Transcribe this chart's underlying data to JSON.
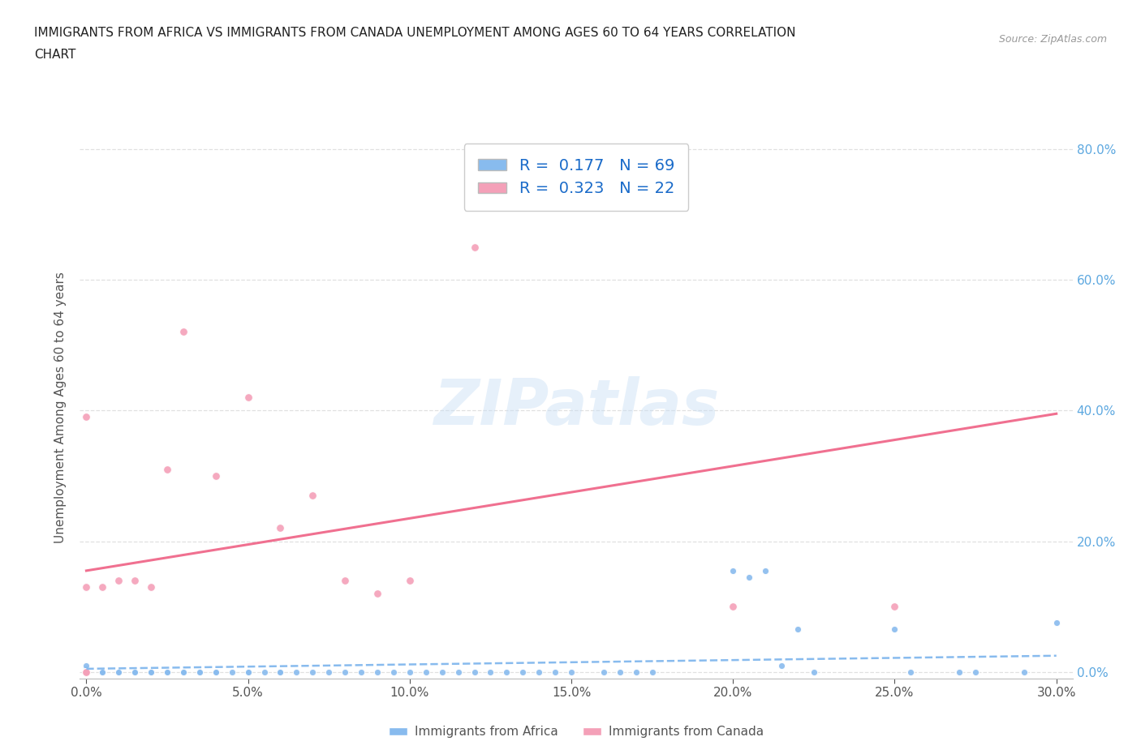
{
  "title": "IMMIGRANTS FROM AFRICA VS IMMIGRANTS FROM CANADA UNEMPLOYMENT AMONG AGES 60 TO 64 YEARS CORRELATION\nCHART",
  "source_text": "Source: ZipAtlas.com",
  "ylabel": "Unemployment Among Ages 60 to 64 years",
  "xlabel_ticks": [
    "0.0%",
    "5.0%",
    "10.0%",
    "15.0%",
    "20.0%",
    "25.0%",
    "30.0%"
  ],
  "ylabel_ticks": [
    "0.0%",
    "20.0%",
    "40.0%",
    "60.0%",
    "80.0%"
  ],
  "xlim": [
    -0.002,
    0.305
  ],
  "ylim": [
    -0.01,
    0.82
  ],
  "africa_color": "#88bbee",
  "canada_color": "#f4a0b8",
  "africa_line_color": "#88bbee",
  "canada_line_color": "#f07090",
  "africa_R": 0.177,
  "africa_N": 69,
  "canada_R": 0.323,
  "canada_N": 22,
  "legend_label_africa": "Immigrants from Africa",
  "legend_label_canada": "Immigrants from Canada",
  "watermark": "ZIPatlas",
  "background_color": "#ffffff",
  "grid_color": "#dddddd",
  "africa_scatter_x": [
    0.0,
    0.0,
    0.0,
    0.0,
    0.0,
    0.0,
    0.0,
    0.0,
    0.0,
    0.0,
    0.005,
    0.005,
    0.005,
    0.01,
    0.01,
    0.015,
    0.015,
    0.02,
    0.02,
    0.02,
    0.025,
    0.025,
    0.03,
    0.03,
    0.03,
    0.035,
    0.035,
    0.04,
    0.04,
    0.045,
    0.05,
    0.05,
    0.055,
    0.06,
    0.06,
    0.065,
    0.07,
    0.075,
    0.08,
    0.085,
    0.09,
    0.095,
    0.1,
    0.105,
    0.11,
    0.115,
    0.12,
    0.125,
    0.13,
    0.135,
    0.14,
    0.145,
    0.15,
    0.16,
    0.165,
    0.17,
    0.175,
    0.2,
    0.205,
    0.21,
    0.215,
    0.22,
    0.225,
    0.25,
    0.255,
    0.27,
    0.275,
    0.29,
    0.3
  ],
  "africa_scatter_y": [
    0.0,
    0.0,
    0.0,
    0.0,
    0.0,
    0.0,
    0.0,
    0.005,
    0.005,
    0.01,
    0.0,
    0.0,
    0.0,
    0.0,
    0.0,
    0.0,
    0.0,
    0.0,
    0.0,
    0.0,
    0.0,
    0.0,
    0.0,
    0.0,
    0.0,
    0.0,
    0.0,
    0.0,
    0.0,
    0.0,
    0.0,
    0.0,
    0.0,
    0.0,
    0.0,
    0.0,
    0.0,
    0.0,
    0.0,
    0.0,
    0.0,
    0.0,
    0.0,
    0.0,
    0.0,
    0.0,
    0.0,
    0.0,
    0.0,
    0.0,
    0.0,
    0.0,
    0.0,
    0.0,
    0.0,
    0.0,
    0.0,
    0.155,
    0.145,
    0.155,
    0.01,
    0.065,
    0.0,
    0.065,
    0.0,
    0.0,
    0.0,
    0.0,
    0.075
  ],
  "canada_scatter_x": [
    0.0,
    0.0,
    0.0,
    0.0,
    0.0,
    0.0,
    0.005,
    0.01,
    0.015,
    0.02,
    0.025,
    0.03,
    0.04,
    0.05,
    0.06,
    0.07,
    0.08,
    0.09,
    0.1,
    0.12,
    0.2,
    0.25
  ],
  "canada_scatter_y": [
    0.0,
    0.0,
    0.0,
    0.0,
    0.13,
    0.39,
    0.13,
    0.14,
    0.14,
    0.13,
    0.31,
    0.52,
    0.3,
    0.42,
    0.22,
    0.27,
    0.14,
    0.12,
    0.14,
    0.65,
    0.1,
    0.1
  ],
  "canada_trend_x": [
    0.0,
    0.3
  ],
  "canada_trend_y": [
    0.155,
    0.395
  ],
  "africa_trend_x": [
    0.0,
    0.3
  ],
  "africa_trend_y": [
    0.005,
    0.025
  ]
}
